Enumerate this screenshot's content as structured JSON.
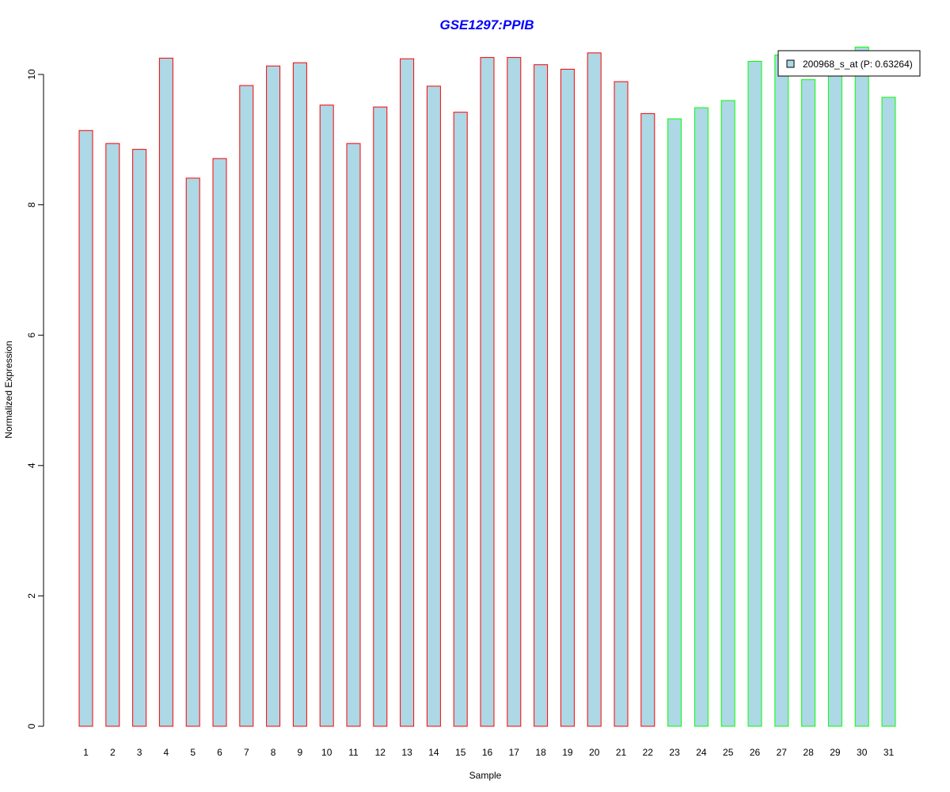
{
  "chart_data": {
    "type": "bar",
    "title": "GSE1297:PPIB",
    "xlabel": "Sample",
    "ylabel": "Normalized Expression",
    "categories": [
      "1",
      "2",
      "3",
      "4",
      "5",
      "6",
      "7",
      "8",
      "9",
      "10",
      "11",
      "12",
      "13",
      "14",
      "15",
      "16",
      "17",
      "18",
      "19",
      "20",
      "21",
      "22",
      "23",
      "24",
      "25",
      "26",
      "27",
      "28",
      "29",
      "30",
      "31"
    ],
    "series": [
      {
        "name": "200968_s_at (P: 0.63264)",
        "values": [
          9.14,
          8.94,
          8.85,
          10.25,
          8.41,
          8.71,
          9.83,
          10.13,
          10.18,
          9.53,
          8.94,
          9.5,
          10.24,
          9.82,
          9.42,
          10.26,
          10.26,
          10.15,
          10.08,
          10.33,
          9.89,
          9.4,
          9.32,
          9.49,
          9.6,
          10.2,
          10.3,
          9.92,
          9.98,
          10.42,
          9.65
        ]
      }
    ],
    "groups": [
      "red",
      "red",
      "red",
      "red",
      "red",
      "red",
      "red",
      "red",
      "red",
      "red",
      "red",
      "red",
      "red",
      "red",
      "red",
      "red",
      "red",
      "red",
      "red",
      "red",
      "red",
      "red",
      "green",
      "green",
      "green",
      "green",
      "green",
      "green",
      "green",
      "green",
      "green"
    ],
    "ylim": [
      0,
      10.42
    ],
    "yticks": [
      0,
      2,
      4,
      6,
      8,
      10
    ],
    "grid": false,
    "legend_position": "top-right",
    "colors": {
      "bar_fill": "#add8e6",
      "border_red": "#ff0000",
      "border_green": "#00ff00",
      "title": "#0000ff",
      "axis": "#000000"
    }
  }
}
